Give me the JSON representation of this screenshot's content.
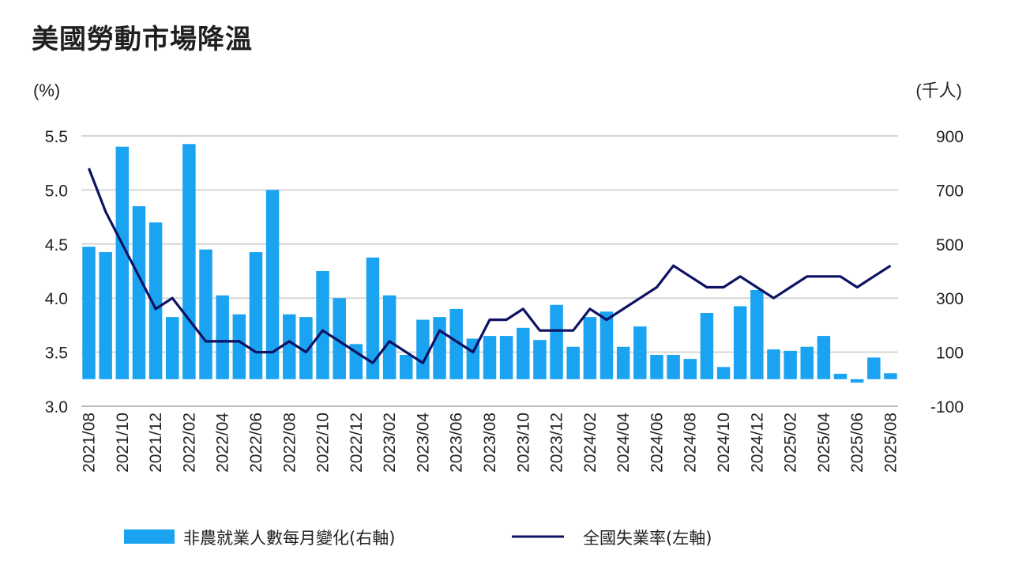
{
  "chart_data": {
    "type": "bar+line",
    "title": "美國勞動市場降溫",
    "left_axis": {
      "unit": "(%)",
      "ylim": [
        3.0,
        5.5
      ],
      "ticks": [
        "3.0",
        "3.5",
        "4.0",
        "4.5",
        "5.0",
        "5.5"
      ]
    },
    "right_axis": {
      "unit": "(千人)",
      "ylim": [
        -100,
        900
      ],
      "ticks": [
        "-100",
        "100",
        "300",
        "500",
        "700",
        "900"
      ]
    },
    "x": [
      "2021/08",
      "2021/09",
      "2021/10",
      "2021/11",
      "2021/12",
      "2022/01",
      "2022/02",
      "2022/03",
      "2022/04",
      "2022/05",
      "2022/06",
      "2022/07",
      "2022/08",
      "2022/09",
      "2022/10",
      "2022/11",
      "2022/12",
      "2023/01",
      "2023/02",
      "2023/03",
      "2023/04",
      "2023/05",
      "2023/06",
      "2023/07",
      "2023/08",
      "2023/09",
      "2023/10",
      "2023/11",
      "2023/12",
      "2024/01",
      "2024/02",
      "2024/03",
      "2024/04",
      "2024/05",
      "2024/06",
      "2024/07",
      "2024/08",
      "2024/09",
      "2024/10",
      "2024/11",
      "2024/12",
      "2025/01",
      "2025/02",
      "2025/03",
      "2025/04",
      "2025/05",
      "2025/06",
      "2025/07",
      "2025/08"
    ],
    "x_tick_labels": [
      "2021/08",
      "2021/10",
      "2021/12",
      "2022/02",
      "2022/04",
      "2022/06",
      "2022/08",
      "2022/10",
      "2022/12",
      "2023/02",
      "2023/04",
      "2023/06",
      "2023/08",
      "2023/10",
      "2023/12",
      "2024/02",
      "2024/04",
      "2024/06",
      "2024/08",
      "2024/10",
      "2024/12",
      "2025/02",
      "2025/04",
      "2025/06",
      "2025/08"
    ],
    "series": [
      {
        "name": "非農就業人數每月變化(右軸)",
        "type": "bar",
        "axis": "right",
        "color": "#1aa3f0",
        "values": [
          490,
          470,
          860,
          640,
          580,
          230,
          870,
          480,
          310,
          240,
          470,
          700,
          240,
          230,
          400,
          300,
          130,
          450,
          310,
          90,
          220,
          230,
          260,
          150,
          160,
          160,
          190,
          145,
          275,
          120,
          230,
          250,
          120,
          195,
          90,
          90,
          75,
          245,
          45,
          270,
          330,
          110,
          105,
          120,
          160,
          20,
          -13,
          80,
          22
        ]
      },
      {
        "name": "全國失業率(左軸)",
        "type": "line",
        "axis": "left",
        "color": "#0d1263",
        "values": [
          5.2,
          4.8,
          4.5,
          4.2,
          3.9,
          4.0,
          3.8,
          3.6,
          3.6,
          3.6,
          3.5,
          3.5,
          3.6,
          3.5,
          3.7,
          3.6,
          3.5,
          3.4,
          3.6,
          3.5,
          3.4,
          3.7,
          3.6,
          3.5,
          3.8,
          3.8,
          3.9,
          3.7,
          3.7,
          3.7,
          3.9,
          3.8,
          3.9,
          4.0,
          4.1,
          4.3,
          4.2,
          4.1,
          4.1,
          4.2,
          4.1,
          4.0,
          4.1,
          4.2,
          4.2,
          4.2,
          4.1,
          4.2,
          4.3
        ]
      }
    ],
    "grid": "horizontal",
    "legend_position": "bottom"
  }
}
